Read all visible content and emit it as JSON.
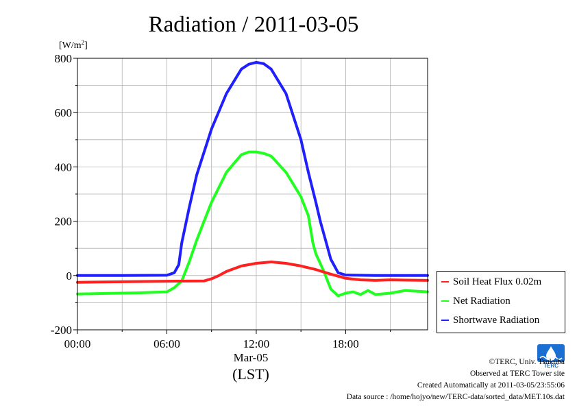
{
  "chart_data": {
    "type": "line",
    "title": "Radiation / 2011-03-05",
    "unit_label": "[W/m",
    "unit_sup": "2",
    "unit_close": "]",
    "xlabel_date": "Mar-05",
    "xlabel": "(LST)",
    "ylim": [
      -200,
      800
    ],
    "xlim": [
      0,
      23.5
    ],
    "y_ticks": [
      -200,
      0,
      200,
      400,
      600,
      800
    ],
    "y_tick_labels": [
      "-200",
      "0",
      "200",
      "400",
      "600",
      "800"
    ],
    "x_ticks": [
      0,
      6,
      12,
      18
    ],
    "x_tick_labels": [
      "00:00",
      "06:00",
      "12:00",
      "18:00"
    ],
    "grid": true,
    "legend_placement": "right",
    "series": [
      {
        "name": "Soil Heat Flux 0.02m",
        "color": "#ff2020",
        "x": [
          0,
          3,
          6,
          8.5,
          9,
          9.5,
          10,
          11,
          12,
          13,
          14,
          15,
          16,
          17,
          18,
          19,
          20,
          21,
          22,
          23.5
        ],
        "y": [
          -25,
          -23,
          -21,
          -20,
          -12,
          0,
          15,
          35,
          45,
          50,
          45,
          35,
          22,
          5,
          -10,
          -16,
          -18,
          -16,
          -17,
          -18
        ]
      },
      {
        "name": "Net Radiation",
        "color": "#20ff20",
        "x": [
          0,
          2,
          4,
          6,
          6.5,
          7,
          7.5,
          8,
          8.5,
          9,
          10,
          11,
          11.5,
          12,
          12.5,
          13,
          14,
          15,
          15.5,
          15.8,
          16,
          16.5,
          17,
          17.5,
          18,
          18.5,
          19,
          19.5,
          20,
          21,
          22,
          23.5
        ],
        "y": [
          -68,
          -66,
          -64,
          -60,
          -45,
          -20,
          50,
          130,
          200,
          270,
          380,
          445,
          455,
          455,
          450,
          440,
          380,
          290,
          220,
          120,
          80,
          20,
          -50,
          -75,
          -65,
          -60,
          -70,
          -55,
          -70,
          -65,
          -55,
          -60
        ]
      },
      {
        "name": "Shortwave Radiation",
        "color": "#2020ff",
        "x": [
          0,
          3,
          6,
          6.5,
          6.8,
          7,
          7.5,
          8,
          9,
          10,
          11,
          11.5,
          12,
          12.5,
          13,
          14,
          15,
          15.5,
          16,
          16.3,
          16.6,
          17,
          17.5,
          18,
          20,
          23.5
        ],
        "y": [
          0,
          0,
          1,
          10,
          40,
          120,
          250,
          370,
          540,
          670,
          760,
          778,
          785,
          780,
          760,
          670,
          500,
          380,
          270,
          200,
          140,
          60,
          10,
          2,
          0,
          0
        ]
      }
    ]
  },
  "legend": {
    "items": [
      {
        "label": "Soil Heat Flux 0.02m",
        "color": "#ff2020"
      },
      {
        "label": "Net Radiation",
        "color": "#20ff20"
      },
      {
        "label": "Shortwave Radiation",
        "color": "#2020ff"
      }
    ]
  },
  "footer": {
    "copyright": "©TERC, Univ. Tsukuba",
    "observed": "Observed at TERC Tower site",
    "created": "Created Automatically at 2011-03-05/23:55:06",
    "source": "Data source : /home/hojyo/new/TERC-data/sorted_data/MET.10s.dat"
  },
  "logo": {
    "text": "TERC",
    "icon": "terc-logo-icon",
    "color": "#1a6fd0"
  }
}
